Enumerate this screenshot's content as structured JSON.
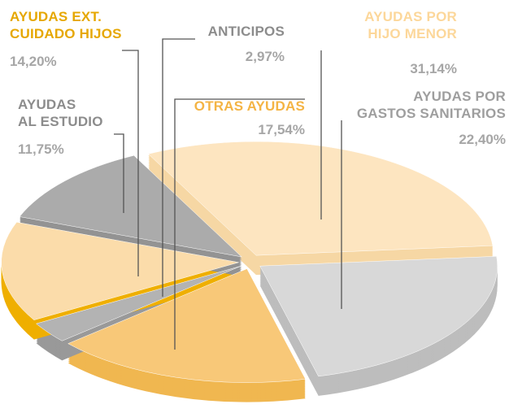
{
  "chart_data": {
    "type": "pie",
    "categories": [
      "AYUDAS POR\nHIJO MENOR",
      "AYUDAS POR\nGASTOS SANITARIOS",
      "OTRAS AYUDAS",
      "ANTICIPOS",
      "AYUDAS EXT.\nCUIDADO HIJOS",
      "AYUDAS\nAL ESTUDIO"
    ],
    "values": [
      31.14,
      22.4,
      17.54,
      2.97,
      14.2,
      11.75
    ],
    "value_labels": [
      "31,14%",
      "22,40%",
      "17,54%",
      "2,97%",
      "14,20%",
      "11,75%"
    ],
    "colors": [
      "#fde5c0",
      "#d8d8d8",
      "#f8c878",
      "#b3b3b3",
      "#fbdcaa",
      "#ababab"
    ],
    "side_colors": [
      "#f6d7a4",
      "#bdbdbd",
      "#f0b750",
      "#999999",
      "#efaf00",
      "#939393"
    ],
    "label_colors": [
      "#fcd79a",
      "#9e9e9e",
      "#f4b444",
      "#8c8c8c",
      "#e6a700",
      "#8c8c8c"
    ]
  }
}
